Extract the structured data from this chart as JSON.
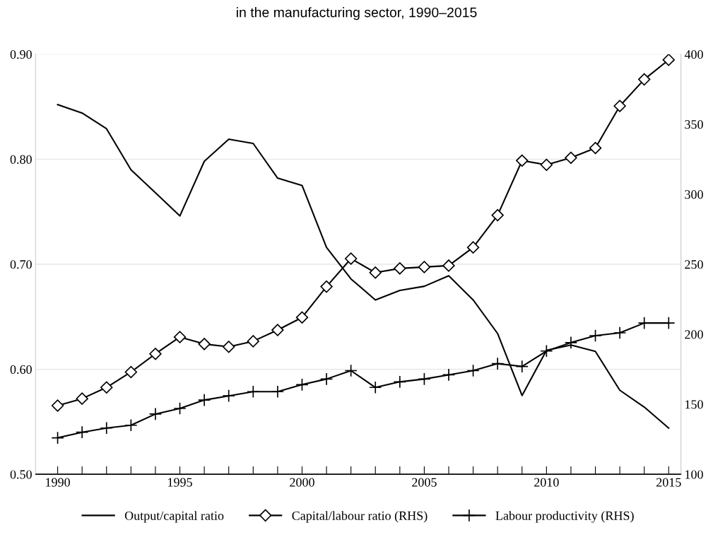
{
  "chart_data": {
    "type": "line",
    "title": "in the manufacturing sector, 1990–2015",
    "x": [
      1990,
      1991,
      1992,
      1993,
      1994,
      1995,
      1996,
      1997,
      1998,
      1999,
      2000,
      2001,
      2002,
      2003,
      2004,
      2005,
      2006,
      2007,
      2008,
      2009,
      2010,
      2011,
      2012,
      2013,
      2014,
      2015
    ],
    "series": [
      {
        "name": "Output/capital ratio",
        "color": "#000000",
        "marker": "none",
        "values": [
          0.852,
          0.844,
          0.829,
          0.79,
          0.768,
          0.746,
          0.798,
          0.819,
          0.815,
          0.782,
          0.775,
          0.716,
          0.686,
          0.666,
          0.675,
          0.679,
          0.689,
          0.666,
          0.634,
          0.575,
          0.618,
          0.623,
          0.617,
          0.58,
          0.564,
          0.544
        ]
      },
      {
        "name": "Capital/labour ratio (RHS)",
        "color": "#000000",
        "marker": "diamond",
        "axis": "y2",
        "values": [
          149,
          154,
          162,
          173,
          186,
          198,
          193,
          191,
          195,
          203,
          212,
          234,
          254,
          244,
          247,
          248,
          249,
          262,
          285,
          324,
          321,
          326,
          333,
          363,
          382,
          396
        ]
      },
      {
        "name": "Labour productivity (RHS)",
        "color": "#000000",
        "marker": "cross",
        "axis": "y2",
        "values": [
          126,
          130,
          133,
          135,
          143,
          147,
          153,
          156,
          159,
          159,
          164,
          168,
          174,
          162,
          166,
          168,
          171,
          174,
          179,
          177,
          188,
          194,
          199,
          201,
          208,
          208
        ]
      }
    ],
    "xlim": [
      1989.1,
      2015.5
    ],
    "xticks": [
      1990,
      {
        "value": 1991,
        "label": null
      },
      {
        "value": 1992,
        "label": null
      },
      {
        "value": 1993,
        "label": null
      },
      {
        "value": 1994,
        "label": null
      },
      1995,
      {
        "value": 1996,
        "label": null
      },
      {
        "value": 1997,
        "label": null
      },
      {
        "value": 1998,
        "label": null
      },
      {
        "value": 1999,
        "label": null
      },
      2000,
      {
        "value": 2001,
        "label": null
      },
      {
        "value": 2002,
        "label": null
      },
      {
        "value": 2003,
        "label": null
      },
      {
        "value": 2004,
        "label": null
      },
      2005,
      {
        "value": 2006,
        "label": null
      },
      {
        "value": 2007,
        "label": null
      },
      {
        "value": 2008,
        "label": null
      },
      {
        "value": 2009,
        "label": null
      },
      2010,
      {
        "value": 2011,
        "label": null
      },
      {
        "value": 2012,
        "label": null
      },
      {
        "value": 2013,
        "label": null
      },
      {
        "value": 2014,
        "label": null
      },
      2015
    ],
    "ylim": [
      0.5,
      0.9
    ],
    "yticks": [
      {
        "value": 0.5,
        "label": "0.50"
      },
      {
        "value": 0.6,
        "label": "0.60"
      },
      {
        "value": 0.7,
        "label": "0.70"
      },
      {
        "value": 0.8,
        "label": "0.80"
      },
      {
        "value": 0.9,
        "label": "0.90"
      }
    ],
    "y2lim": [
      100,
      400
    ],
    "y2ticks": [
      100,
      150,
      200,
      250,
      300,
      350,
      400
    ],
    "grid": "y",
    "legend": "bottom",
    "line_style": "solid"
  }
}
